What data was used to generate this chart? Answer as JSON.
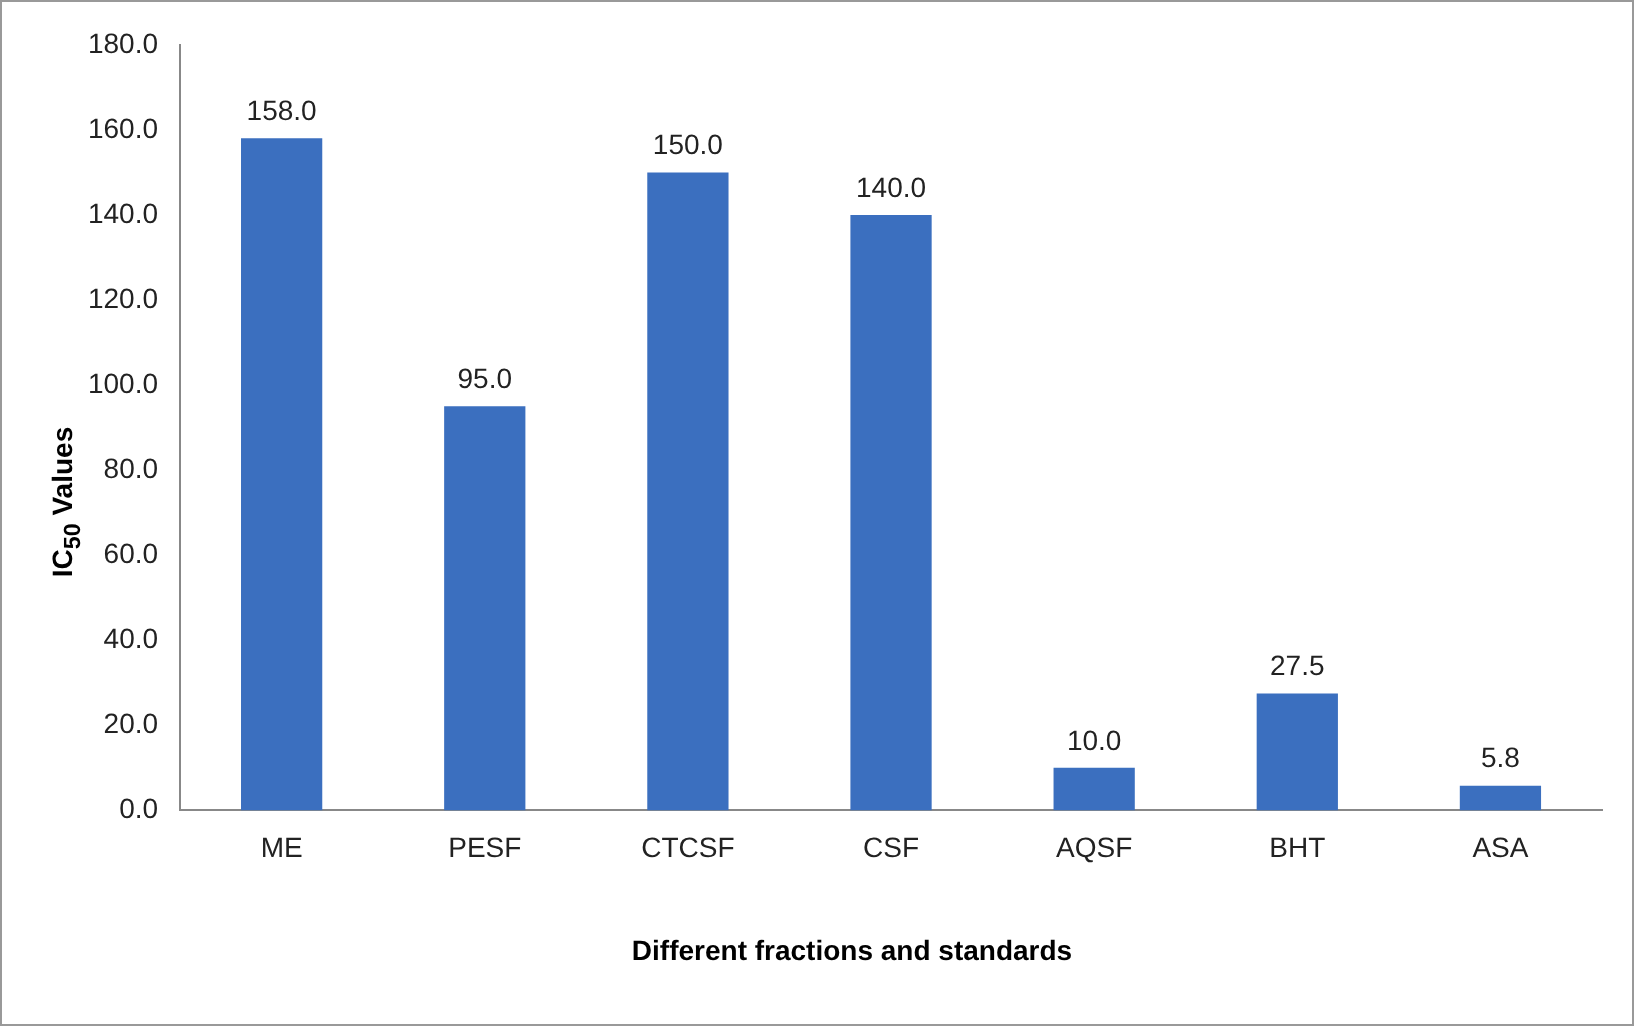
{
  "chart_data": {
    "type": "bar",
    "xlabel": "Different fractions and standards",
    "ylabel": "IC$_{50}$ Values",
    "categories": [
      "ME",
      "PESF",
      "CTCSF",
      "CSF",
      "AQSF",
      "BHT",
      "ASA"
    ],
    "values": [
      158.0,
      95.0,
      150.0,
      140.0,
      10.0,
      27.5,
      5.8
    ],
    "value_labels": [
      "158.0",
      "95.0",
      "150.0",
      "140.0",
      "10.0",
      "27.5",
      "5.8"
    ],
    "color": "#3b6fbf",
    "ylim": [
      0,
      180
    ],
    "yticks": [
      {
        "value": 0,
        "label": "0.0"
      },
      {
        "value": 20,
        "label": "20.0"
      },
      {
        "value": 40,
        "label": "40.0"
      },
      {
        "value": 60,
        "label": "60.0"
      },
      {
        "value": 80,
        "label": "80.0"
      },
      {
        "value": 100,
        "label": "100.0"
      },
      {
        "value": 120,
        "label": "120.0"
      },
      {
        "value": 140,
        "label": "140.0"
      },
      {
        "value": 160,
        "label": "160.0"
      },
      {
        "value": 180,
        "label": "180.0"
      }
    ],
    "grid": false,
    "legend": false
  }
}
